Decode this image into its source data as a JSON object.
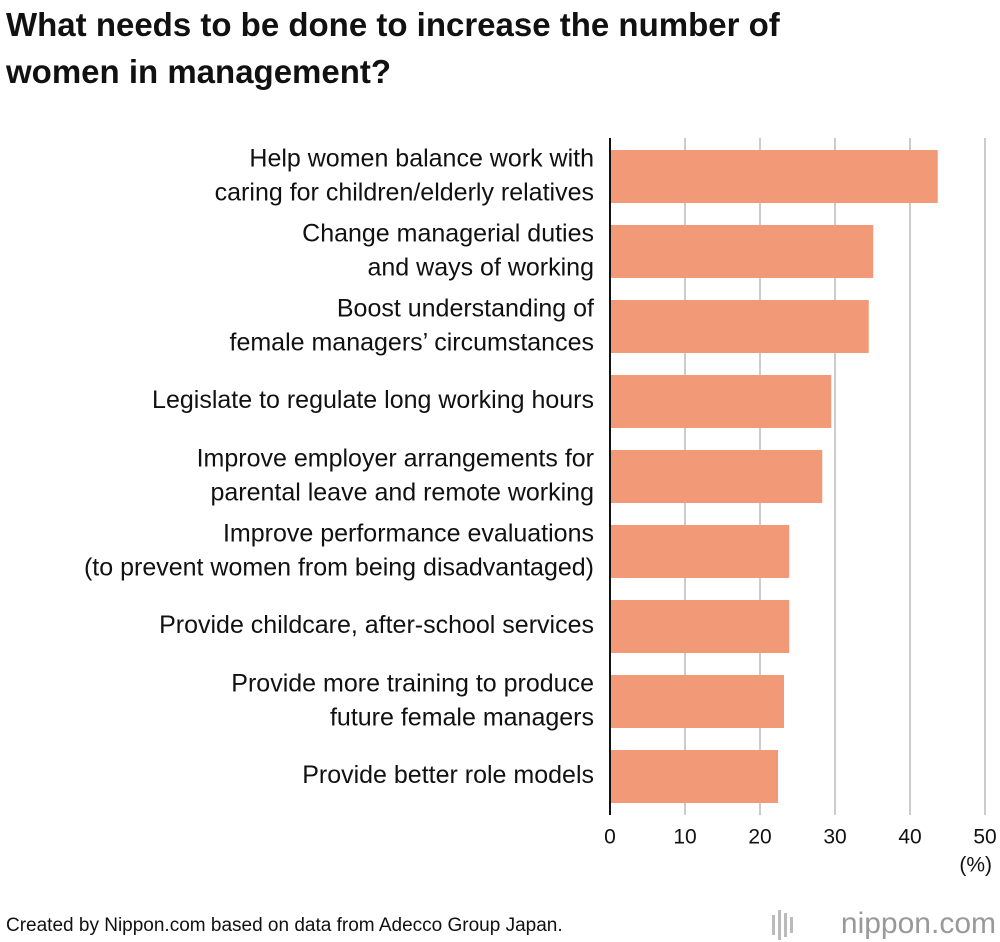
{
  "chart_data": {
    "type": "bar",
    "orientation": "horizontal",
    "title": "What needs to be done to increase the number of\nwomen in management?",
    "categories": [
      "Help women balance work with\ncaring for children/elderly relatives",
      "Change managerial duties\nand ways of working",
      "Boost understanding of\nfemale managers’ circumstances",
      "Legislate to regulate long working hours",
      "Improve employer arrangements for\nparental leave and remote working",
      "Improve performance evaluations\n(to prevent women from being disadvantaged)",
      "Provide childcare, after-school services",
      "Provide more training to produce\nfuture female managers",
      "Provide better role models"
    ],
    "values": [
      43.7,
      35.1,
      34.5,
      29.5,
      28.3,
      23.9,
      23.9,
      23.2,
      22.4
    ],
    "color": "#f29a78",
    "xlim": [
      0,
      50
    ],
    "xticks": [
      0,
      10,
      20,
      30,
      40,
      50
    ],
    "grid": true,
    "x_label": "(%)",
    "source": "Created by Nippon.com based on data from Adecco Group Japan.",
    "logo": "nippon.com"
  }
}
